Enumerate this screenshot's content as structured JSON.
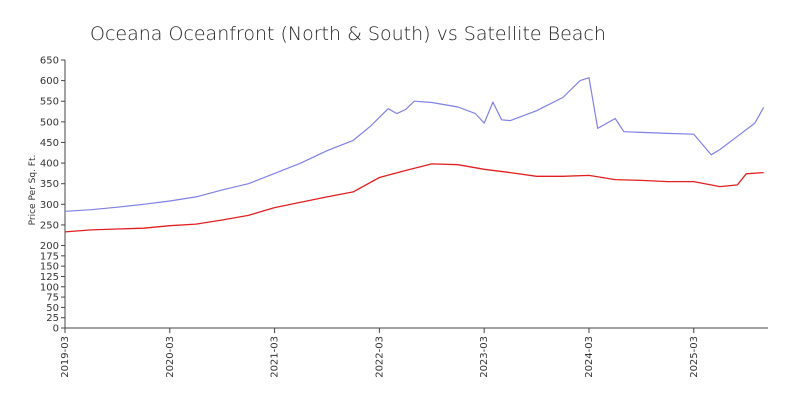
{
  "chart_data": {
    "type": "line",
    "title": "Oceana Oceanfront (North & South) vs Satellite Beach",
    "xlabel": "",
    "ylabel": "Price Per Sq. Ft.",
    "ylim": [
      0,
      650
    ],
    "yticks": [
      0,
      25,
      50,
      75,
      100,
      125,
      150,
      175,
      200,
      250,
      300,
      350,
      400,
      450,
      500,
      550,
      600,
      650
    ],
    "xticks": [
      "2019-03",
      "2020-03",
      "2021-03",
      "2022-03",
      "2023-03",
      "2024-03",
      "2025-03"
    ],
    "grid": false,
    "legend": "none",
    "series": [
      {
        "color": "#8080e8",
        "points": [
          [
            "2019-03",
            283
          ],
          [
            "2019-06",
            287
          ],
          [
            "2019-09",
            293
          ],
          [
            "2019-12",
            300
          ],
          [
            "2020-03",
            308
          ],
          [
            "2020-06",
            318
          ],
          [
            "2020-09",
            335
          ],
          [
            "2020-12",
            350
          ],
          [
            "2021-03",
            375
          ],
          [
            "2021-06",
            400
          ],
          [
            "2021-09",
            430
          ],
          [
            "2021-12",
            455
          ],
          [
            "2022-02",
            490
          ],
          [
            "2022-04",
            532
          ],
          [
            "2022-05",
            520
          ],
          [
            "2022-06",
            530
          ],
          [
            "2022-07",
            550
          ],
          [
            "2022-09",
            547
          ],
          [
            "2022-12",
            536
          ],
          [
            "2023-02",
            520
          ],
          [
            "2023-03",
            497
          ],
          [
            "2023-04",
            548
          ],
          [
            "2023-05",
            505
          ],
          [
            "2023-06",
            503
          ],
          [
            "2023-09",
            527
          ],
          [
            "2023-12",
            559
          ],
          [
            "2024-02",
            600
          ],
          [
            "2024-03",
            607
          ],
          [
            "2024-04",
            484
          ],
          [
            "2024-06",
            508
          ],
          [
            "2024-07",
            476
          ],
          [
            "2024-12",
            472
          ],
          [
            "2025-03",
            470
          ],
          [
            "2025-05",
            420
          ],
          [
            "2025-06",
            433
          ],
          [
            "2025-08",
            465
          ],
          [
            "2025-10",
            497
          ],
          [
            "2025-11",
            535
          ]
        ]
      },
      {
        "color": "#e02020",
        "points": [
          [
            "2019-03",
            233
          ],
          [
            "2019-06",
            238
          ],
          [
            "2019-09",
            240
          ],
          [
            "2019-12",
            242
          ],
          [
            "2020-03",
            248
          ],
          [
            "2020-06",
            252
          ],
          [
            "2020-09",
            262
          ],
          [
            "2020-12",
            273
          ],
          [
            "2021-03",
            292
          ],
          [
            "2021-06",
            305
          ],
          [
            "2021-09",
            318
          ],
          [
            "2021-12",
            330
          ],
          [
            "2022-03",
            365
          ],
          [
            "2022-06",
            382
          ],
          [
            "2022-09",
            398
          ],
          [
            "2022-12",
            396
          ],
          [
            "2023-03",
            385
          ],
          [
            "2023-06",
            377
          ],
          [
            "2023-09",
            368
          ],
          [
            "2023-12",
            368
          ],
          [
            "2024-03",
            370
          ],
          [
            "2024-06",
            360
          ],
          [
            "2024-09",
            358
          ],
          [
            "2024-12",
            355
          ],
          [
            "2025-03",
            355
          ],
          [
            "2025-06",
            343
          ],
          [
            "2025-08",
            347
          ],
          [
            "2025-09",
            374
          ],
          [
            "2025-11",
            377
          ]
        ]
      }
    ]
  }
}
